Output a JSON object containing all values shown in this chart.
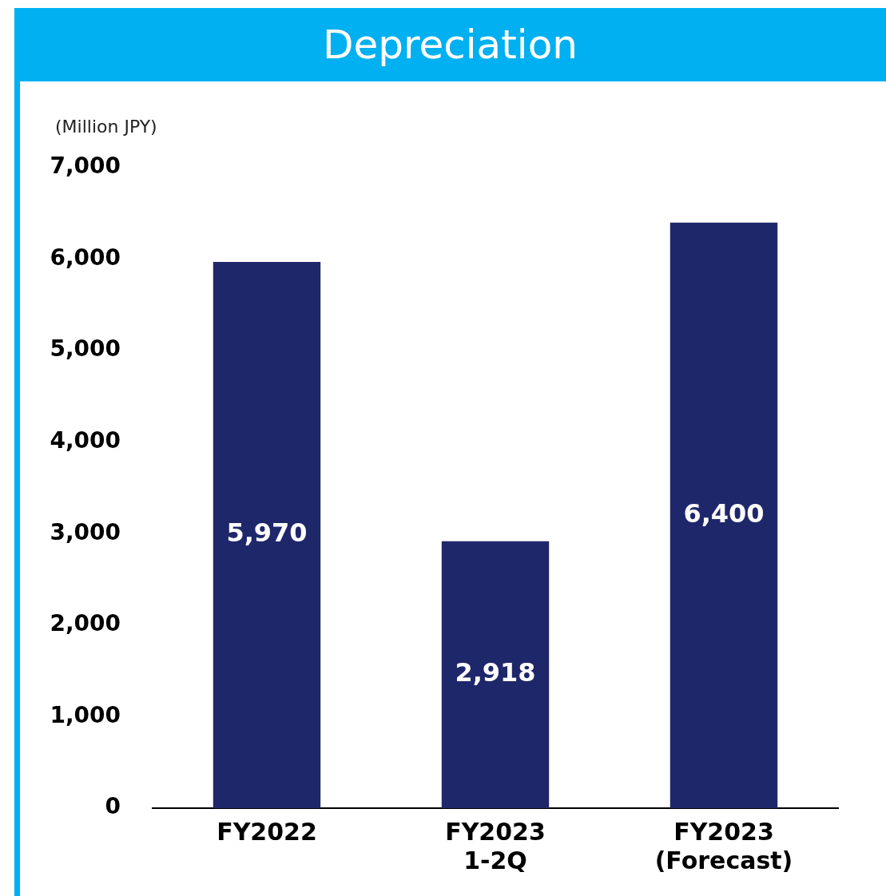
{
  "chart_data": {
    "type": "bar",
    "title": "Depreciation",
    "ylabel": "(Million JPY)",
    "categories": [
      "FY2022",
      "FY2023\n1-2Q",
      "FY2023\n(Forecast)"
    ],
    "values": [
      5970,
      2918,
      6400
    ],
    "color": "#1f276b",
    "value_labels": [
      "5,970",
      "2,918",
      "6,400"
    ],
    "ylim": [
      0,
      7000
    ],
    "yticks": [
      0,
      {
        "value": 1000,
        "label": "1,000"
      },
      {
        "value": 2000,
        "label": "2,000"
      },
      {
        "value": 3000,
        "label": "3,000"
      },
      {
        "value": 4000,
        "label": "4,000"
      },
      {
        "value": 5000,
        "label": "5,000"
      },
      {
        "value": 6000,
        "label": "6,000"
      },
      {
        "value": 7000,
        "label": "7,000"
      }
    ],
    "grid": false
  }
}
